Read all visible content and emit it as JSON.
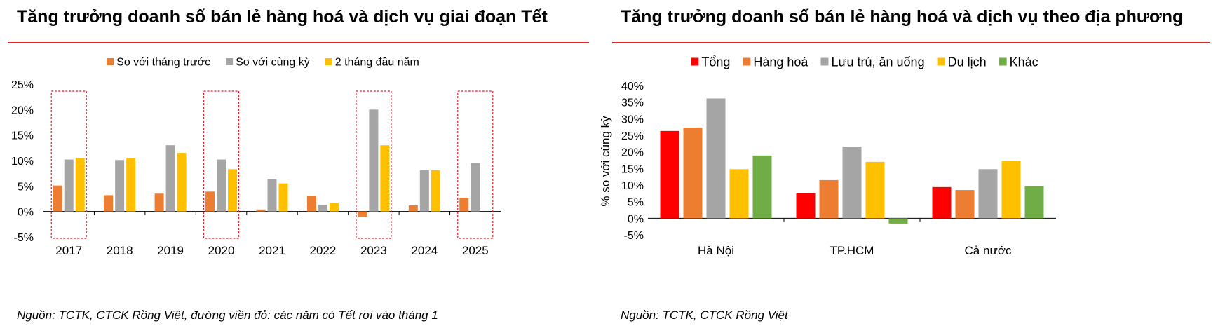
{
  "chart_data": [
    {
      "type": "bar",
      "title": "Tăng trưởng doanh số bán lẻ hàng hoá và dịch vụ giai đoạn Tết",
      "source": "Nguồn: TCTK, CTCK Rồng Việt, đường viền đỏ: các năm có Tết rơi vào tháng 1",
      "categories": [
        "2017",
        "2018",
        "2019",
        "2020",
        "2021",
        "2022",
        "2023",
        "2024",
        "2025"
      ],
      "series": [
        {
          "name": "So với tháng trước",
          "color": "#ed7d31",
          "values": [
            5.1,
            3.2,
            3.5,
            3.9,
            0.4,
            3.0,
            -1.0,
            1.2,
            2.7
          ]
        },
        {
          "name": "So với cùng kỳ",
          "color": "#a5a5a5",
          "values": [
            10.2,
            10.1,
            13.0,
            10.2,
            6.4,
            1.3,
            20.0,
            8.1,
            9.5
          ]
        },
        {
          "name": "2 tháng đầu năm",
          "color": "#ffc000",
          "values": [
            10.5,
            10.5,
            11.5,
            8.3,
            5.5,
            1.7,
            13.0,
            8.1,
            null
          ]
        }
      ],
      "highlighted_categories": [
        "2017",
        "2020",
        "2023",
        "2025"
      ],
      "yticks": [
        "-5%",
        "0%",
        "5%",
        "10%",
        "15%",
        "20%",
        "25%"
      ],
      "ylim": [
        -5,
        25
      ],
      "legend_position": "top",
      "grid": false
    },
    {
      "type": "bar",
      "title": "Tăng trưởng doanh số bán lẻ hàng hoá và dịch vụ theo địa phương",
      "source": "Nguồn: TCTK, CTCK Rồng Việt",
      "ylabel": "% so với cùng kỳ",
      "categories": [
        "Hà Nội",
        "TP.HCM",
        "Cả nước"
      ],
      "series": [
        {
          "name": "Tổng",
          "color": "#ff0000",
          "values": [
            26.3,
            7.5,
            9.4
          ]
        },
        {
          "name": "Hàng hoá",
          "color": "#ed7d31",
          "values": [
            27.3,
            11.5,
            8.5
          ]
        },
        {
          "name": "Lưu trú, ăn uống",
          "color": "#a5a5a5",
          "values": [
            36.1,
            21.6,
            14.8
          ]
        },
        {
          "name": "Du lịch",
          "color": "#ffc000",
          "values": [
            14.8,
            17.0,
            17.3
          ]
        },
        {
          "name": "Khác",
          "color": "#70ad47",
          "values": [
            18.9,
            -1.6,
            9.7
          ]
        }
      ],
      "yticks": [
        "-5%",
        "0%",
        "5%",
        "10%",
        "15%",
        "20%",
        "25%",
        "30%",
        "35%",
        "40%"
      ],
      "ylim": [
        -5,
        40
      ],
      "legend_position": "top",
      "grid": false
    }
  ]
}
